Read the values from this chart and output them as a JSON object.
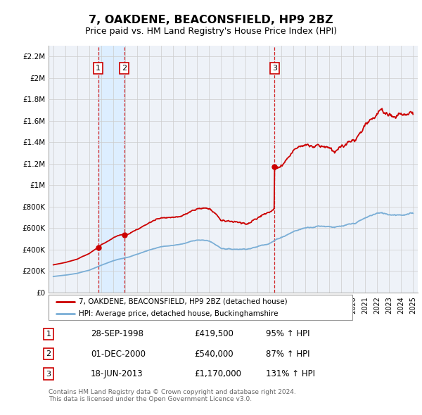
{
  "title": "7, OAKDENE, BEACONSFIELD, HP9 2BZ",
  "subtitle": "Price paid vs. HM Land Registry's House Price Index (HPI)",
  "property_label": "7, OAKDENE, BEACONSFIELD, HP9 2BZ (detached house)",
  "hpi_label": "HPI: Average price, detached house, Buckinghamshire",
  "footnote1": "Contains HM Land Registry data © Crown copyright and database right 2024.",
  "footnote2": "This data is licensed under the Open Government Licence v3.0.",
  "sales": [
    {
      "num": 1,
      "date": "28-SEP-1998",
      "price": "£419,500",
      "pct": "95% ↑ HPI"
    },
    {
      "num": 2,
      "date": "01-DEC-2000",
      "price": "£540,000",
      "pct": "87% ↑ HPI"
    },
    {
      "num": 3,
      "date": "18-JUN-2013",
      "price": "£1,170,000",
      "pct": "131% ↑ HPI"
    }
  ],
  "sale_years": [
    1998.75,
    2000.92,
    2013.46
  ],
  "sale_prices": [
    419500,
    540000,
    1170000
  ],
  "ylim": [
    0,
    2300000
  ],
  "yticks": [
    0,
    200000,
    400000,
    600000,
    800000,
    1000000,
    1200000,
    1400000,
    1600000,
    1800000,
    2000000,
    2200000
  ],
  "ytick_labels": [
    "£0",
    "£200K",
    "£400K",
    "£600K",
    "£800K",
    "£1M",
    "£1.2M",
    "£1.4M",
    "£1.6M",
    "£1.8M",
    "£2M",
    "£2.2M"
  ],
  "xlim_start": 1994.6,
  "xlim_end": 2025.4,
  "property_color": "#cc0000",
  "hpi_color": "#7aaed6",
  "vline_color": "#cc0000",
  "shade_color": "#ddeeff",
  "background_color": "#eef2f8"
}
